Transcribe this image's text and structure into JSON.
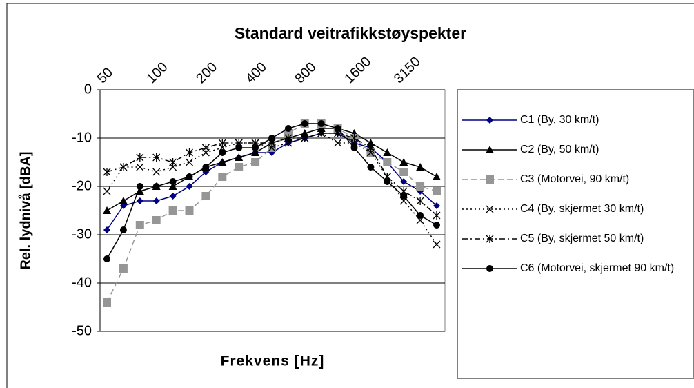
{
  "chart_data": {
    "type": "line",
    "title": "Standard veitrafikkstøyspekter",
    "x_label": "Frekvens [Hz]",
    "y_label": "Rel. lydnivå [dBA]",
    "categories": [
      "50",
      null,
      null,
      "100",
      null,
      null,
      "200",
      null,
      null,
      "400",
      null,
      null,
      "800",
      null,
      null,
      "1600",
      null,
      null,
      "3150",
      null,
      null
    ],
    "ylim": [
      -50,
      0
    ],
    "yticks": [
      -50,
      -40,
      -30,
      -20,
      -10,
      0
    ],
    "grid": true,
    "legend": "right",
    "series": [
      {
        "name": "C1 (By, 30 km/t)",
        "color": "#000080",
        "marker": "diamond",
        "dash": "solid",
        "values": [
          -29,
          -24,
          -23,
          -23,
          -22,
          -20,
          -17,
          -15,
          -14,
          -13,
          -13,
          -11,
          -10,
          -9,
          -9,
          -11,
          -12,
          -15,
          -19,
          -21,
          -24
        ]
      },
      {
        "name": "C2 (By, 50 km/t)",
        "color": "#000000",
        "marker": "triangle",
        "dash": "solid",
        "values": [
          -25,
          -23,
          -21,
          -20,
          -20,
          -18,
          -16,
          -15,
          -14,
          -13,
          -11,
          -10,
          -9,
          -8,
          -8,
          -9,
          -11,
          -13,
          -15,
          -16,
          -18
        ]
      },
      {
        "name": "C3 (Motorvei, 90 km/t)",
        "color": "#969696",
        "marker": "square",
        "dash": "dashed",
        "values": [
          -44,
          -37,
          -28,
          -27,
          -25,
          -25,
          -22,
          -18,
          -16,
          -15,
          -12,
          -9,
          -7,
          -7,
          -8,
          -10,
          -13,
          -15,
          -17,
          -20,
          -21
        ]
      },
      {
        "name": "C4 (By, skjermet 30 km/t)",
        "color": "#000000",
        "marker": "x",
        "dash": "dotted",
        "values": [
          -21,
          -16,
          -16,
          -17,
          -16,
          -15,
          -13,
          -12,
          -11,
          -11,
          -12,
          -11,
          -10,
          -9,
          -11,
          -11,
          -13,
          -18,
          -23,
          -27,
          -32
        ]
      },
      {
        "name": "C5 (By, skjermet 50 km/t)",
        "color": "#000000",
        "marker": "star",
        "dash": "dashdot",
        "values": [
          -17,
          -16,
          -14,
          -14,
          -15,
          -13,
          -12,
          -11,
          -11,
          -11,
          -11,
          -10,
          -10,
          -9,
          -9,
          -10,
          -12,
          -18,
          -21,
          -23,
          -26
        ]
      },
      {
        "name": "C6 (Motorvei, skjermet 90 km/t)",
        "color": "#000000",
        "marker": "circle",
        "dash": "solid",
        "values": [
          -35,
          -29,
          -20,
          -20,
          -19,
          -18,
          -16,
          -13,
          -12,
          -12,
          -10,
          -8,
          -7,
          -7,
          -8,
          -12,
          -16,
          -19,
          -22,
          -26,
          -28
        ]
      }
    ]
  }
}
